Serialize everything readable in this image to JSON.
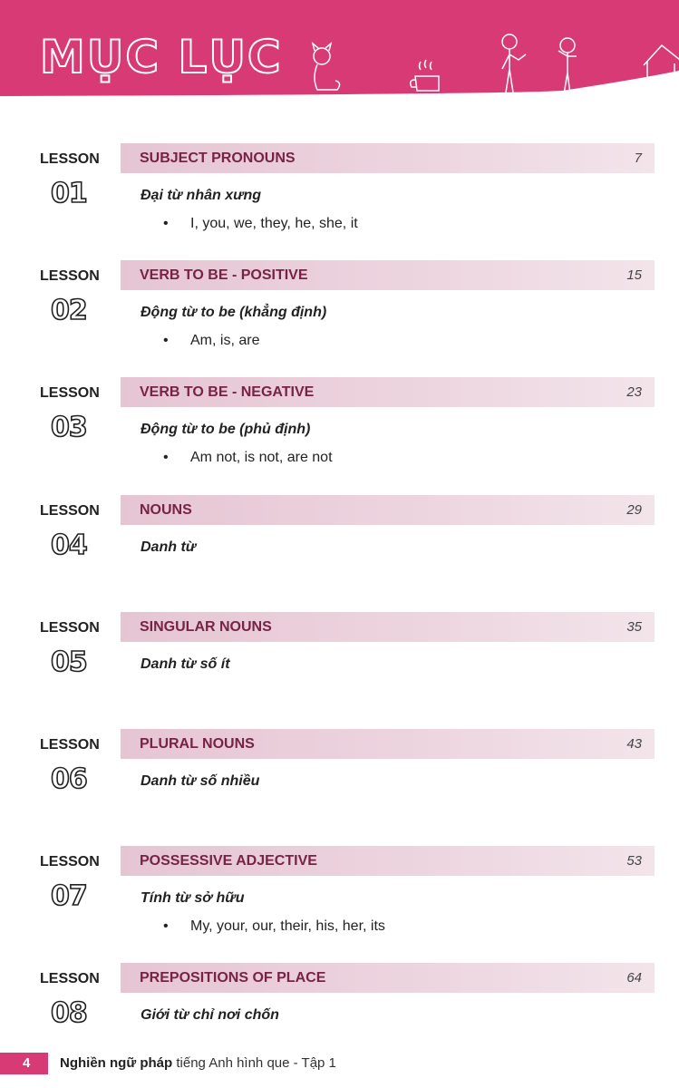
{
  "header": {
    "title": "MỤC LỤC",
    "color": "#d83a75"
  },
  "lesson_label": "LESSON",
  "lessons": [
    {
      "num": "01",
      "title": "SUBJECT PRONOUNS",
      "page": "7",
      "subtitle": "Đại từ nhân xưng",
      "bullet": "I, you, we, they, he, she, it"
    },
    {
      "num": "02",
      "title": "VERB TO BE - POSITIVE",
      "page": "15",
      "subtitle": "Động từ to be (khẳng định)",
      "bullet": "Am, is, are"
    },
    {
      "num": "03",
      "title": "VERB TO BE - NEGATIVE",
      "page": "23",
      "subtitle": "Động từ to be (phủ định)",
      "bullet": "Am not, is not, are not"
    },
    {
      "num": "04",
      "title": "NOUNS",
      "page": "29",
      "subtitle": "Danh từ",
      "bullet": null
    },
    {
      "num": "05",
      "title": "SINGULAR NOUNS",
      "page": "35",
      "subtitle": "Danh từ số ít",
      "bullet": null
    },
    {
      "num": "06",
      "title": "PLURAL NOUNS",
      "page": "43",
      "subtitle": "Danh từ số nhiều",
      "bullet": null
    },
    {
      "num": "07",
      "title": "POSSESSIVE ADJECTIVE",
      "page": "53",
      "subtitle": "Tính từ sở hữu",
      "bullet": "My, your, our, their, his, her, its"
    },
    {
      "num": "08",
      "title": "PREPOSITIONS OF PLACE",
      "page": "64",
      "subtitle": "Giới từ chỉ nơi chốn",
      "bullet": null
    }
  ],
  "footer": {
    "page_number": "4",
    "book_bold": "Nghiền ngữ pháp",
    "book_rest": " tiếng Anh hình que - Tập 1"
  }
}
